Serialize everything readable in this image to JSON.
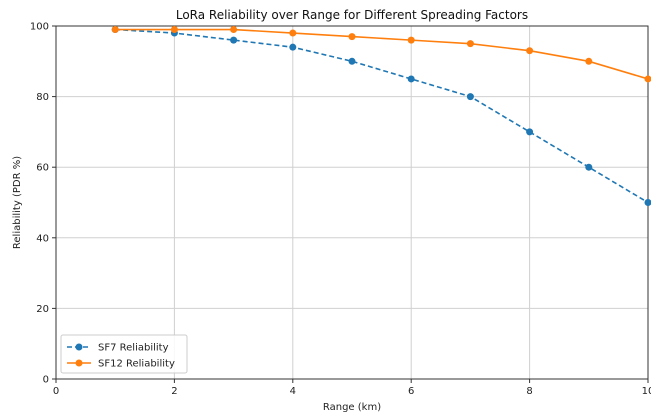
{
  "chart_data": {
    "type": "line",
    "title": "LoRa Reliability over Range for Different Spreading Factors",
    "xlabel": "Range (km)",
    "ylabel": "Reliability (PDR %)",
    "xlim": [
      0,
      10
    ],
    "ylim": [
      0,
      100
    ],
    "xticks": [
      0,
      2,
      4,
      6,
      8,
      10
    ],
    "yticks": [
      0,
      20,
      40,
      60,
      80,
      100
    ],
    "grid": true,
    "legend_position": "lower-left",
    "x": [
      1,
      2,
      3,
      4,
      5,
      6,
      7,
      8,
      9,
      10
    ],
    "series": [
      {
        "name": "SF7 Reliability",
        "color": "#1f77b4",
        "line_style": "dashed",
        "marker": "circle",
        "values": [
          99,
          98,
          96,
          94,
          90,
          85,
          80,
          70,
          60,
          50
        ]
      },
      {
        "name": "SF12 Reliability",
        "color": "#ff7f0e",
        "line_style": "solid",
        "marker": "circle",
        "values": [
          99,
          99,
          99,
          98,
          97,
          96,
          95,
          93,
          90,
          85
        ]
      }
    ]
  }
}
